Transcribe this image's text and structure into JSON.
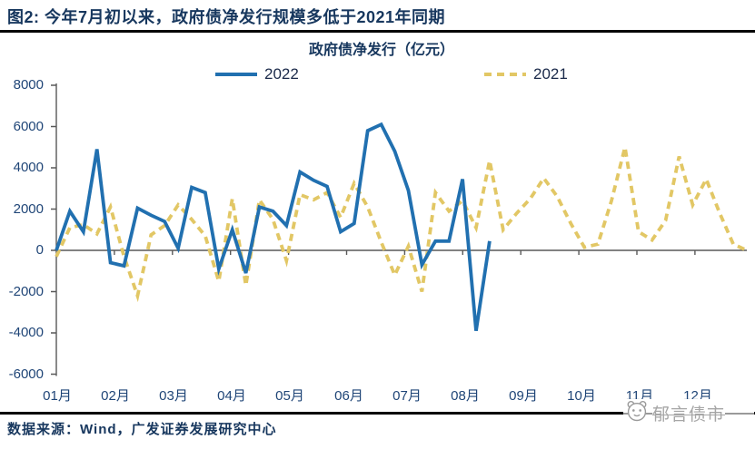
{
  "figure_title": "图2:  今年7月初以来，政府债净发行规模多低于2021年同期",
  "chart_title": "政府债净发行（亿元）",
  "legend": {
    "items": [
      {
        "label": "2022",
        "style": "solid"
      },
      {
        "label": "2021",
        "style": "dashed"
      }
    ]
  },
  "footer": {
    "source_text": "数据来源：Wind，广发证券发展研究中心"
  },
  "watermark": {
    "text": "郁言债市",
    "icon": "panda-face-icon"
  },
  "colors": {
    "title_navy": "#17375E",
    "axis_label_blue": "#1F4577",
    "series_2022_blue": "#2170B0",
    "series_2021_gold": "#E2C765",
    "rule_black": "#000000",
    "axis_gray": "#595959",
    "watermark_gray": "#A6A6A6"
  },
  "chart_data": {
    "type": "line",
    "title": "政府债净发行（亿元）",
    "frequency": "weekly",
    "xlabel": "",
    "ylabel": "",
    "ylim": [
      -6000,
      8000
    ],
    "grid": false,
    "legend_position": "top",
    "x_axis": {
      "tick_labels": [
        "01月",
        "02月",
        "03月",
        "04月",
        "05月",
        "06月",
        "07月",
        "08月",
        "09月",
        "10月",
        "11月",
        "12月"
      ]
    },
    "y_axis": {
      "ticks": [
        8000,
        6000,
        4000,
        2000,
        0,
        -2000,
        -4000,
        -6000
      ]
    },
    "series": [
      {
        "name": "2022",
        "color": "#2170B0",
        "dash": false,
        "values": [
          0,
          1900,
          900,
          4900,
          -600,
          -750,
          2050,
          1700,
          1400,
          100,
          3050,
          2800,
          -900,
          1000,
          -1100,
          2100,
          1900,
          1200,
          3800,
          3400,
          3100,
          900,
          1300,
          5800,
          6100,
          4800,
          2900,
          -700,
          450,
          450,
          3450,
          -3900,
          450
        ]
      },
      {
        "name": "2021",
        "color": "#E2C765",
        "dash": true,
        "values": [
          -300,
          1100,
          1250,
          800,
          2100,
          -300,
          -2200,
          750,
          1200,
          2200,
          1500,
          700,
          -1500,
          2500,
          -1700,
          2450,
          1500,
          -500,
          2700,
          2450,
          2800,
          1600,
          3250,
          2100,
          400,
          -1200,
          200,
          -2000,
          2800,
          1900,
          2400,
          1100,
          4350,
          1000,
          1800,
          2500,
          3500,
          2600,
          1300,
          150,
          300,
          2400,
          5000,
          900,
          500,
          1450,
          4550,
          2200,
          3450,
          1800,
          300,
          0
        ]
      }
    ]
  }
}
